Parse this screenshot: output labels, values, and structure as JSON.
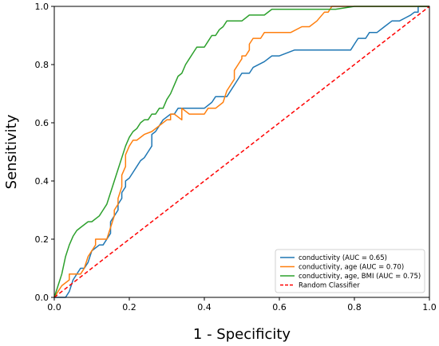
{
  "chart_data": {
    "type": "line",
    "title": "",
    "xlabel": "1 - Specificity",
    "ylabel": "Sensitivity",
    "xlim": [
      0.0,
      1.0
    ],
    "ylim": [
      0.0,
      1.0
    ],
    "x_ticks": [
      "0.0",
      "0.2",
      "0.4",
      "0.6",
      "0.8",
      "1.0"
    ],
    "y_ticks": [
      "0.0",
      "0.2",
      "0.4",
      "0.6",
      "0.8",
      "1.0"
    ],
    "x_tick_values": [
      0.0,
      0.2,
      0.4,
      0.6,
      0.8,
      1.0
    ],
    "y_tick_values": [
      0.0,
      0.2,
      0.4,
      0.6,
      0.8,
      1.0
    ],
    "grid": false,
    "legend_position": "lower-right",
    "series": [
      {
        "name": "conductivity (AUC = 0.65)",
        "color": "#1f77b4",
        "style": "solid",
        "x": [
          0.0,
          0.03,
          0.04,
          0.05,
          0.07,
          0.08,
          0.09,
          0.1,
          0.12,
          0.13,
          0.15,
          0.15,
          0.16,
          0.17,
          0.17,
          0.18,
          0.18,
          0.19,
          0.19,
          0.2,
          0.21,
          0.22,
          0.23,
          0.24,
          0.25,
          0.26,
          0.26,
          0.27,
          0.28,
          0.29,
          0.31,
          0.32,
          0.33,
          0.35,
          0.38,
          0.4,
          0.42,
          0.43,
          0.44,
          0.46,
          0.48,
          0.5,
          0.52,
          0.53,
          0.56,
          0.58,
          0.6,
          0.64,
          0.68,
          0.72,
          0.76,
          0.79,
          0.8,
          0.81,
          0.83,
          0.84,
          0.86,
          0.88,
          0.9,
          0.92,
          0.95,
          0.96,
          0.97,
          0.97,
          1.0
        ],
        "y": [
          0.0,
          0.0,
          0.02,
          0.06,
          0.1,
          0.1,
          0.12,
          0.16,
          0.18,
          0.18,
          0.22,
          0.26,
          0.28,
          0.3,
          0.32,
          0.34,
          0.36,
          0.38,
          0.4,
          0.41,
          0.43,
          0.45,
          0.47,
          0.48,
          0.5,
          0.52,
          0.56,
          0.57,
          0.59,
          0.61,
          0.63,
          0.63,
          0.65,
          0.65,
          0.65,
          0.65,
          0.67,
          0.69,
          0.69,
          0.69,
          0.73,
          0.77,
          0.77,
          0.79,
          0.81,
          0.83,
          0.83,
          0.85,
          0.85,
          0.85,
          0.85,
          0.85,
          0.87,
          0.89,
          0.89,
          0.91,
          0.91,
          0.93,
          0.95,
          0.95,
          0.97,
          0.98,
          0.98,
          1.0,
          1.0
        ]
      },
      {
        "name": "conductivity, age (AUC = 0.70)",
        "color": "#ff7f0e",
        "style": "solid",
        "x": [
          0.0,
          0.01,
          0.02,
          0.04,
          0.04,
          0.06,
          0.07,
          0.08,
          0.09,
          0.1,
          0.11,
          0.11,
          0.12,
          0.14,
          0.15,
          0.16,
          0.16,
          0.17,
          0.17,
          0.18,
          0.18,
          0.19,
          0.19,
          0.2,
          0.21,
          0.22,
          0.24,
          0.26,
          0.28,
          0.3,
          0.31,
          0.31,
          0.32,
          0.34,
          0.34,
          0.36,
          0.38,
          0.4,
          0.41,
          0.43,
          0.45,
          0.46,
          0.47,
          0.48,
          0.48,
          0.49,
          0.5,
          0.5,
          0.51,
          0.52,
          0.52,
          0.53,
          0.54,
          0.55,
          0.56,
          0.58,
          0.6,
          0.63,
          0.66,
          0.68,
          0.7,
          0.72,
          0.73,
          0.74,
          0.76,
          0.78,
          0.8,
          0.81,
          0.82,
          1.0
        ],
        "y": [
          0.0,
          0.02,
          0.04,
          0.06,
          0.08,
          0.08,
          0.08,
          0.1,
          0.14,
          0.16,
          0.18,
          0.2,
          0.2,
          0.2,
          0.24,
          0.28,
          0.3,
          0.32,
          0.34,
          0.38,
          0.42,
          0.45,
          0.49,
          0.52,
          0.54,
          0.54,
          0.56,
          0.57,
          0.59,
          0.61,
          0.61,
          0.63,
          0.63,
          0.61,
          0.65,
          0.63,
          0.63,
          0.63,
          0.65,
          0.65,
          0.67,
          0.71,
          0.73,
          0.75,
          0.78,
          0.8,
          0.82,
          0.83,
          0.83,
          0.85,
          0.87,
          0.89,
          0.89,
          0.89,
          0.91,
          0.91,
          0.91,
          0.91,
          0.93,
          0.93,
          0.95,
          0.98,
          0.98,
          1.0,
          1.0,
          1.0,
          1.0,
          1.0,
          1.0,
          1.0
        ]
      },
      {
        "name": "conductivity, age, BMI (AUC = 0.75)",
        "color": "#2ca02c",
        "style": "solid",
        "x": [
          0.0,
          0.01,
          0.02,
          0.03,
          0.04,
          0.05,
          0.06,
          0.07,
          0.09,
          0.1,
          0.12,
          0.13,
          0.14,
          0.15,
          0.16,
          0.17,
          0.18,
          0.19,
          0.2,
          0.21,
          0.22,
          0.23,
          0.24,
          0.25,
          0.26,
          0.27,
          0.28,
          0.29,
          0.3,
          0.31,
          0.32,
          0.33,
          0.34,
          0.35,
          0.36,
          0.37,
          0.38,
          0.39,
          0.4,
          0.41,
          0.42,
          0.43,
          0.44,
          0.45,
          0.46,
          0.48,
          0.5,
          0.52,
          0.54,
          0.56,
          0.58,
          0.6,
          0.65,
          0.7,
          0.75,
          0.8,
          0.82,
          0.85,
          0.9,
          0.95,
          1.0
        ],
        "y": [
          0.0,
          0.04,
          0.08,
          0.14,
          0.18,
          0.21,
          0.23,
          0.24,
          0.26,
          0.26,
          0.28,
          0.3,
          0.32,
          0.36,
          0.4,
          0.44,
          0.48,
          0.52,
          0.55,
          0.57,
          0.58,
          0.6,
          0.61,
          0.61,
          0.63,
          0.63,
          0.65,
          0.65,
          0.68,
          0.7,
          0.73,
          0.76,
          0.77,
          0.8,
          0.82,
          0.84,
          0.86,
          0.86,
          0.86,
          0.88,
          0.9,
          0.9,
          0.92,
          0.93,
          0.95,
          0.95,
          0.95,
          0.97,
          0.97,
          0.97,
          0.99,
          0.99,
          0.99,
          0.99,
          0.99,
          1.0,
          1.0,
          1.0,
          1.0,
          1.0,
          1.0
        ]
      },
      {
        "name": "Random Classifier",
        "color": "#ff0000",
        "style": "dashed",
        "x": [
          0.0,
          1.0
        ],
        "y": [
          0.0,
          1.0
        ]
      }
    ]
  }
}
